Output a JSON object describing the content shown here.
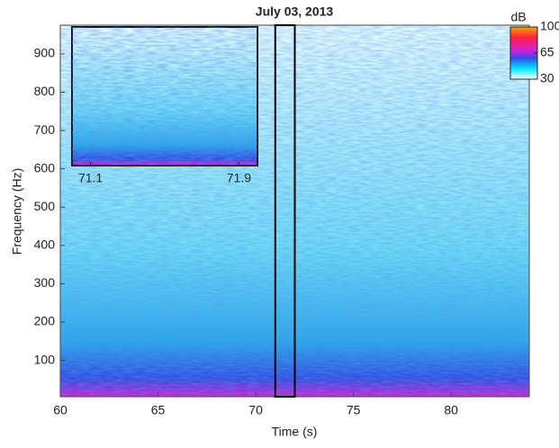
{
  "chart_data": {
    "type": "spectrogram",
    "title": "July 03, 2013",
    "xlabel": "Time (s)",
    "ylabel": "Frequency (Hz)",
    "xlim": [
      60,
      84
    ],
    "xticks": [
      60,
      65,
      70,
      75,
      80
    ],
    "ylim": [
      5,
      975
    ],
    "yticks": [
      100,
      200,
      300,
      400,
      500,
      600,
      700,
      800,
      900
    ],
    "highlight": [
      71,
      72
    ],
    "inset_xticks": [
      71.1,
      71.9
    ],
    "colorbar": {
      "label": "dB",
      "lim": [
        30,
        100
      ],
      "ticks": [
        30,
        65,
        100
      ]
    }
  }
}
